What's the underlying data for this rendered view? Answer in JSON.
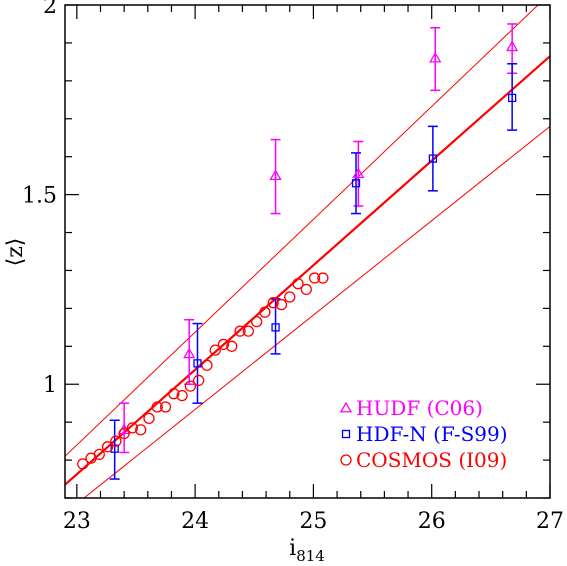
{
  "chart_data": {
    "type": "scatter",
    "xlabel": "i",
    "xlabel_sub": "814",
    "ylabel": "⟨z⟩",
    "xlim": [
      22.9,
      27.0
    ],
    "ylim": [
      0.7,
      2.0
    ],
    "grid": false,
    "legend_position": "bottom-right",
    "x_ticks": [
      {
        "value": 23,
        "label": "23"
      },
      {
        "value": 24,
        "label": "24"
      },
      {
        "value": 25,
        "label": "25"
      },
      {
        "value": 26,
        "label": "26"
      },
      {
        "value": 27,
        "label": "27"
      }
    ],
    "y_ticks": [
      {
        "value": 1.0,
        "label": "1"
      },
      {
        "value": 1.5,
        "label": "1.5"
      },
      {
        "value": 2.0,
        "label": "2"
      }
    ],
    "lines": [
      {
        "role": "fit",
        "color": "#ff0000",
        "x": [
          22.9,
          27.0
        ],
        "y": [
          0.735,
          1.865
        ]
      },
      {
        "role": "upper-envelope",
        "color": "#ff0000",
        "x": [
          22.9,
          27.0
        ],
        "y": [
          0.81,
          2.03
        ]
      },
      {
        "role": "lower-envelope",
        "color": "#ff0000",
        "x": [
          22.9,
          27.0
        ],
        "y": [
          0.66,
          1.68
        ]
      }
    ],
    "series": [
      {
        "name": "HUDF (C06)",
        "marker": "triangle",
        "color": "#ff00ff",
        "points": [
          {
            "x": 23.4,
            "y": 0.88,
            "lo": 0.82,
            "hi": 0.95
          },
          {
            "x": 23.95,
            "y": 1.08,
            "lo": 1.0,
            "hi": 1.17
          },
          {
            "x": 24.68,
            "y": 1.55,
            "lo": 1.45,
            "hi": 1.645
          },
          {
            "x": 25.38,
            "y": 1.555,
            "lo": 1.47,
            "hi": 1.64
          },
          {
            "x": 26.03,
            "y": 1.86,
            "lo": 1.775,
            "hi": 1.94
          },
          {
            "x": 26.68,
            "y": 1.89,
            "lo": 1.82,
            "hi": 1.95
          }
        ]
      },
      {
        "name": "HDF-N (F-S99)",
        "marker": "square",
        "color": "#0000ff",
        "points": [
          {
            "x": 23.32,
            "y": 0.83,
            "lo": 0.75,
            "hi": 0.905
          },
          {
            "x": 24.02,
            "y": 1.055,
            "lo": 0.95,
            "hi": 1.16
          },
          {
            "x": 24.68,
            "y": 1.15,
            "lo": 1.08,
            "hi": 1.225
          },
          {
            "x": 25.36,
            "y": 1.53,
            "lo": 1.45,
            "hi": 1.61
          },
          {
            "x": 26.01,
            "y": 1.595,
            "lo": 1.51,
            "hi": 1.68
          },
          {
            "x": 26.68,
            "y": 1.755,
            "lo": 1.67,
            "hi": 1.845
          }
        ]
      },
      {
        "name": "COSMOS (I09)",
        "marker": "circle",
        "color": "#ff0000",
        "points": [
          {
            "x": 23.05,
            "y": 0.79
          },
          {
            "x": 23.12,
            "y": 0.805
          },
          {
            "x": 23.19,
            "y": 0.815
          },
          {
            "x": 23.26,
            "y": 0.835
          },
          {
            "x": 23.33,
            "y": 0.85
          },
          {
            "x": 23.4,
            "y": 0.87
          },
          {
            "x": 23.47,
            "y": 0.885
          },
          {
            "x": 23.54,
            "y": 0.88
          },
          {
            "x": 23.61,
            "y": 0.91
          },
          {
            "x": 23.68,
            "y": 0.94
          },
          {
            "x": 23.75,
            "y": 0.94
          },
          {
            "x": 23.82,
            "y": 0.975
          },
          {
            "x": 23.89,
            "y": 0.97
          },
          {
            "x": 23.96,
            "y": 0.995
          },
          {
            "x": 24.03,
            "y": 1.01
          },
          {
            "x": 24.1,
            "y": 1.05
          },
          {
            "x": 24.17,
            "y": 1.09
          },
          {
            "x": 24.24,
            "y": 1.105
          },
          {
            "x": 24.31,
            "y": 1.1
          },
          {
            "x": 24.38,
            "y": 1.14
          },
          {
            "x": 24.45,
            "y": 1.14
          },
          {
            "x": 24.52,
            "y": 1.165
          },
          {
            "x": 24.59,
            "y": 1.19
          },
          {
            "x": 24.66,
            "y": 1.215
          },
          {
            "x": 24.73,
            "y": 1.21
          },
          {
            "x": 24.8,
            "y": 1.23
          },
          {
            "x": 24.87,
            "y": 1.265
          },
          {
            "x": 24.94,
            "y": 1.25
          },
          {
            "x": 25.01,
            "y": 1.28
          },
          {
            "x": 25.08,
            "y": 1.28
          }
        ]
      }
    ]
  }
}
